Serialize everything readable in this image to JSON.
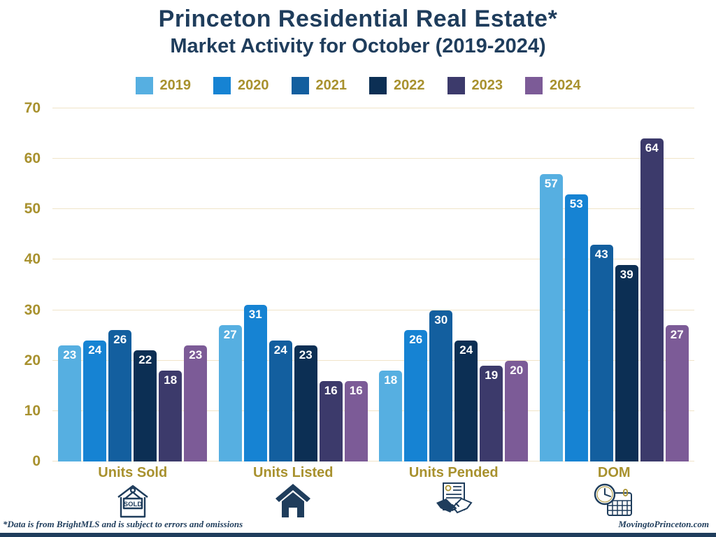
{
  "title": {
    "line1": "Princeton Residential Real Estate*",
    "line2": "Market Activity for October (2019-2024)"
  },
  "chart_data": {
    "type": "bar",
    "title": "Princeton Residential Real Estate* Market Activity for October (2019-2024)",
    "categories": [
      "Units Sold",
      "Units Listed",
      "Units Pended",
      "DOM"
    ],
    "series": [
      {
        "name": "2019",
        "color": "#56AFE1",
        "values": [
          23,
          27,
          18,
          57
        ]
      },
      {
        "name": "2020",
        "color": "#1683D3",
        "values": [
          24,
          31,
          26,
          53
        ]
      },
      {
        "name": "2021",
        "color": "#135F9F",
        "values": [
          26,
          24,
          30,
          43
        ]
      },
      {
        "name": "2022",
        "color": "#0C2F54",
        "values": [
          22,
          23,
          24,
          39
        ]
      },
      {
        "name": "2023",
        "color": "#3C3A6B",
        "values": [
          18,
          16,
          19,
          64
        ]
      },
      {
        "name": "2024",
        "color": "#7C5B97",
        "values": [
          23,
          16,
          20,
          27
        ]
      }
    ],
    "ylim": [
      0,
      70
    ],
    "y_ticks": [
      0,
      10,
      20,
      30,
      40,
      50,
      60,
      70
    ],
    "grid": true,
    "legend_position": "top",
    "bar_value_labels": true,
    "category_icons": [
      "sold-house-icon",
      "house-icon",
      "handshake-document-icon",
      "clock-calendar-icon"
    ]
  },
  "colors": {
    "title_navy": "#1F3D5C",
    "gold_text": "#A8912E",
    "gridline": "#F0E4C8",
    "bottom_bar": "#1F3D5C"
  },
  "footer": {
    "disclaimer": "*Data is from BrightMLS and is subject to errors and omissions",
    "website": "MovingtoPrinceton.com"
  }
}
